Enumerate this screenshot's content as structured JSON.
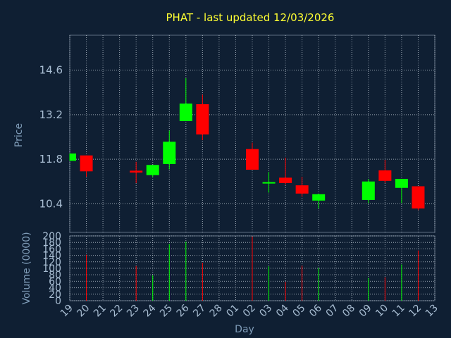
{
  "chart_data": {
    "type": "candlestick",
    "title": "PHAT - last updated 12/03/2026",
    "xlabel": "Day",
    "price_panel": {
      "ylabel": "Price",
      "ylim": [
        9.5,
        15.7
      ],
      "yticks": [
        "10.4",
        "11.8",
        "13.2",
        "14.6"
      ],
      "grid": true
    },
    "volume_panel": {
      "ylabel": "Volume (0000)",
      "ylim": [
        0,
        200
      ],
      "yticks": [
        "0",
        "20",
        "40",
        "60",
        "80",
        "100",
        "120",
        "140",
        "160",
        "180",
        "200"
      ],
      "grid": true
    },
    "categories": [
      "19",
      "20",
      "21",
      "22",
      "23",
      "24",
      "25",
      "26",
      "27",
      "28",
      "01",
      "02",
      "03",
      "04",
      "05",
      "06",
      "07",
      "08",
      "09",
      "10",
      "11",
      "12",
      "13"
    ],
    "candles": [
      {
        "day": "19",
        "open": 11.75,
        "close": 11.98,
        "high": 11.98,
        "low": 11.75,
        "volume": 0
      },
      {
        "day": "20",
        "open": 11.92,
        "close": 11.42,
        "high": 11.92,
        "low": 11.25,
        "volume": 142
      },
      {
        "day": "23",
        "open": 11.44,
        "close": 11.38,
        "high": 11.72,
        "low": 11.05,
        "volume": 107
      },
      {
        "day": "24",
        "open": 11.3,
        "close": 11.62,
        "high": 11.62,
        "low": 11.25,
        "volume": 78
      },
      {
        "day": "25",
        "open": 11.65,
        "close": 12.35,
        "high": 12.7,
        "low": 11.48,
        "volume": 175
      },
      {
        "day": "26",
        "open": 13.0,
        "close": 13.55,
        "high": 14.35,
        "low": 13.0,
        "volume": 182
      },
      {
        "day": "27",
        "open": 13.53,
        "close": 12.58,
        "high": 13.83,
        "low": 12.4,
        "volume": 117
      },
      {
        "day": "02",
        "open": 12.12,
        "close": 11.47,
        "high": 12.32,
        "low": 11.47,
        "volume": 198
      },
      {
        "day": "03",
        "open": 11.05,
        "close": 11.08,
        "high": 11.4,
        "low": 10.75,
        "volume": 106
      },
      {
        "day": "04",
        "open": 11.22,
        "close": 11.05,
        "high": 11.85,
        "low": 11.0,
        "volume": 58
      },
      {
        "day": "05",
        "open": 10.98,
        "close": 10.72,
        "high": 11.25,
        "low": 10.62,
        "volume": 108
      },
      {
        "day": "06",
        "open": 10.5,
        "close": 10.7,
        "high": 10.72,
        "low": 10.25,
        "volume": 101
      },
      {
        "day": "09",
        "open": 10.52,
        "close": 11.1,
        "high": 11.18,
        "low": 10.42,
        "volume": 70
      },
      {
        "day": "10",
        "open": 11.45,
        "close": 11.12,
        "high": 11.78,
        "low": 11.05,
        "volume": 72
      },
      {
        "day": "11",
        "open": 10.9,
        "close": 11.18,
        "high": 11.18,
        "low": 10.42,
        "volume": 112
      },
      {
        "day": "12",
        "open": 10.95,
        "close": 10.25,
        "high": 10.95,
        "low": 10.2,
        "volume": 155
      }
    ],
    "colors": {
      "up": "#00ff00",
      "down": "#ff0000",
      "title": "#ffff33",
      "background": "#0f1f33",
      "axis_text": "#a9bed3"
    }
  }
}
